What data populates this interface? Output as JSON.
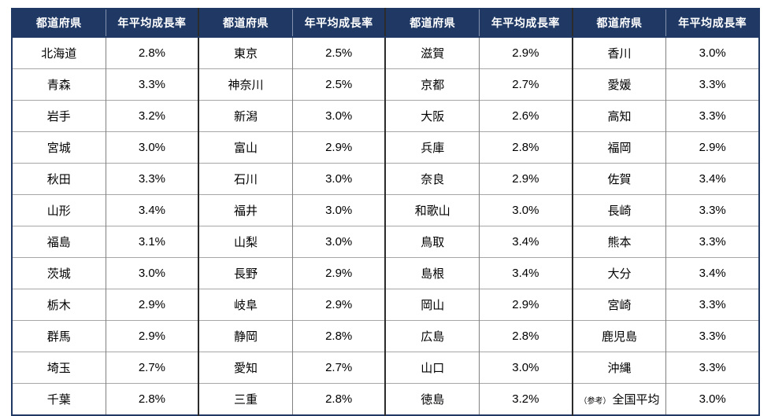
{
  "colors": {
    "header_background": "#1f3864",
    "header_text": "#ffffff",
    "body_text": "#000000",
    "row_divider": "#a6a6a6",
    "pair_divider": "#2b2b2b",
    "cell_divider": "#808080",
    "outer_border": "#1f3864"
  },
  "chart_data": {
    "type": "table",
    "header": {
      "prefecture": "都道府県",
      "rate": "年平均成長率"
    },
    "column_groups": [
      {
        "rows": [
          {
            "name": "北海道",
            "rate": "2.8%"
          },
          {
            "name": "青森",
            "rate": "3.3%"
          },
          {
            "name": "岩手",
            "rate": "3.2%"
          },
          {
            "name": "宮城",
            "rate": "3.0%"
          },
          {
            "name": "秋田",
            "rate": "3.3%"
          },
          {
            "name": "山形",
            "rate": "3.4%"
          },
          {
            "name": "福島",
            "rate": "3.1%"
          },
          {
            "name": "茨城",
            "rate": "3.0%"
          },
          {
            "name": "栃木",
            "rate": "2.9%"
          },
          {
            "name": "群馬",
            "rate": "2.9%"
          },
          {
            "name": "埼玉",
            "rate": "2.7%"
          },
          {
            "name": "千葉",
            "rate": "2.8%"
          }
        ]
      },
      {
        "rows": [
          {
            "name": "東京",
            "rate": "2.5%"
          },
          {
            "name": "神奈川",
            "rate": "2.5%"
          },
          {
            "name": "新潟",
            "rate": "3.0%"
          },
          {
            "name": "富山",
            "rate": "2.9%"
          },
          {
            "name": "石川",
            "rate": "3.0%"
          },
          {
            "name": "福井",
            "rate": "3.0%"
          },
          {
            "name": "山梨",
            "rate": "3.0%"
          },
          {
            "name": "長野",
            "rate": "2.9%"
          },
          {
            "name": "岐阜",
            "rate": "2.9%"
          },
          {
            "name": "静岡",
            "rate": "2.8%"
          },
          {
            "name": "愛知",
            "rate": "2.7%"
          },
          {
            "name": "三重",
            "rate": "2.8%"
          }
        ]
      },
      {
        "rows": [
          {
            "name": "滋賀",
            "rate": "2.9%"
          },
          {
            "name": "京都",
            "rate": "2.7%"
          },
          {
            "name": "大阪",
            "rate": "2.6%"
          },
          {
            "name": "兵庫",
            "rate": "2.8%"
          },
          {
            "name": "奈良",
            "rate": "2.9%"
          },
          {
            "name": "和歌山",
            "rate": "3.0%"
          },
          {
            "name": "鳥取",
            "rate": "3.4%"
          },
          {
            "name": "島根",
            "rate": "3.4%"
          },
          {
            "name": "岡山",
            "rate": "2.9%"
          },
          {
            "name": "広島",
            "rate": "2.8%"
          },
          {
            "name": "山口",
            "rate": "3.0%"
          },
          {
            "name": "徳島",
            "rate": "3.2%"
          }
        ]
      },
      {
        "rows": [
          {
            "name": "香川",
            "rate": "3.0%"
          },
          {
            "name": "愛媛",
            "rate": "3.3%"
          },
          {
            "name": "高知",
            "rate": "3.3%"
          },
          {
            "name": "福岡",
            "rate": "2.9%"
          },
          {
            "name": "佐賀",
            "rate": "3.4%"
          },
          {
            "name": "長崎",
            "rate": "3.3%"
          },
          {
            "name": "熊本",
            "rate": "3.3%"
          },
          {
            "name": "大分",
            "rate": "3.4%"
          },
          {
            "name": "宮崎",
            "rate": "3.3%"
          },
          {
            "name": "鹿児島",
            "rate": "3.3%"
          },
          {
            "name": "沖縄",
            "rate": "3.3%"
          },
          {
            "prefix": "（参考）",
            "name": "全国平均",
            "rate": "3.0%"
          }
        ]
      }
    ]
  }
}
